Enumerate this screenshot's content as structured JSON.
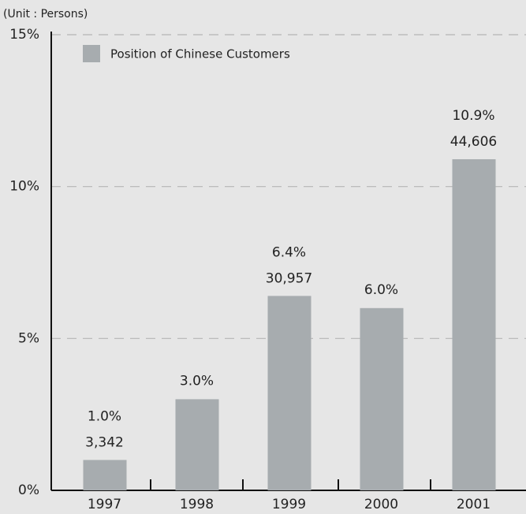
{
  "chart_data": {
    "type": "bar",
    "unit_note": "(Unit : Persons)",
    "categories": [
      "1997",
      "1998",
      "1999",
      "2000",
      "2001"
    ],
    "series": [
      {
        "name": "Position of Chinese Customers",
        "color": "#a7acaf",
        "values": [
          1.0,
          3.0,
          6.4,
          6.0,
          10.9
        ],
        "value_labels": [
          "1.0%",
          "3.0%",
          "6.4%",
          "6.0%",
          "10.9%"
        ],
        "count_labels": [
          "3,342",
          null,
          "30,957",
          null,
          "44,606"
        ]
      }
    ],
    "ylim": [
      0,
      15
    ],
    "yticks": [
      {
        "value": 0,
        "label": "0%"
      },
      {
        "value": 5,
        "label": "5%"
      },
      {
        "value": 10,
        "label": "10%"
      },
      {
        "value": 15,
        "label": "15%"
      }
    ],
    "grid": true,
    "legend": "top-left"
  }
}
